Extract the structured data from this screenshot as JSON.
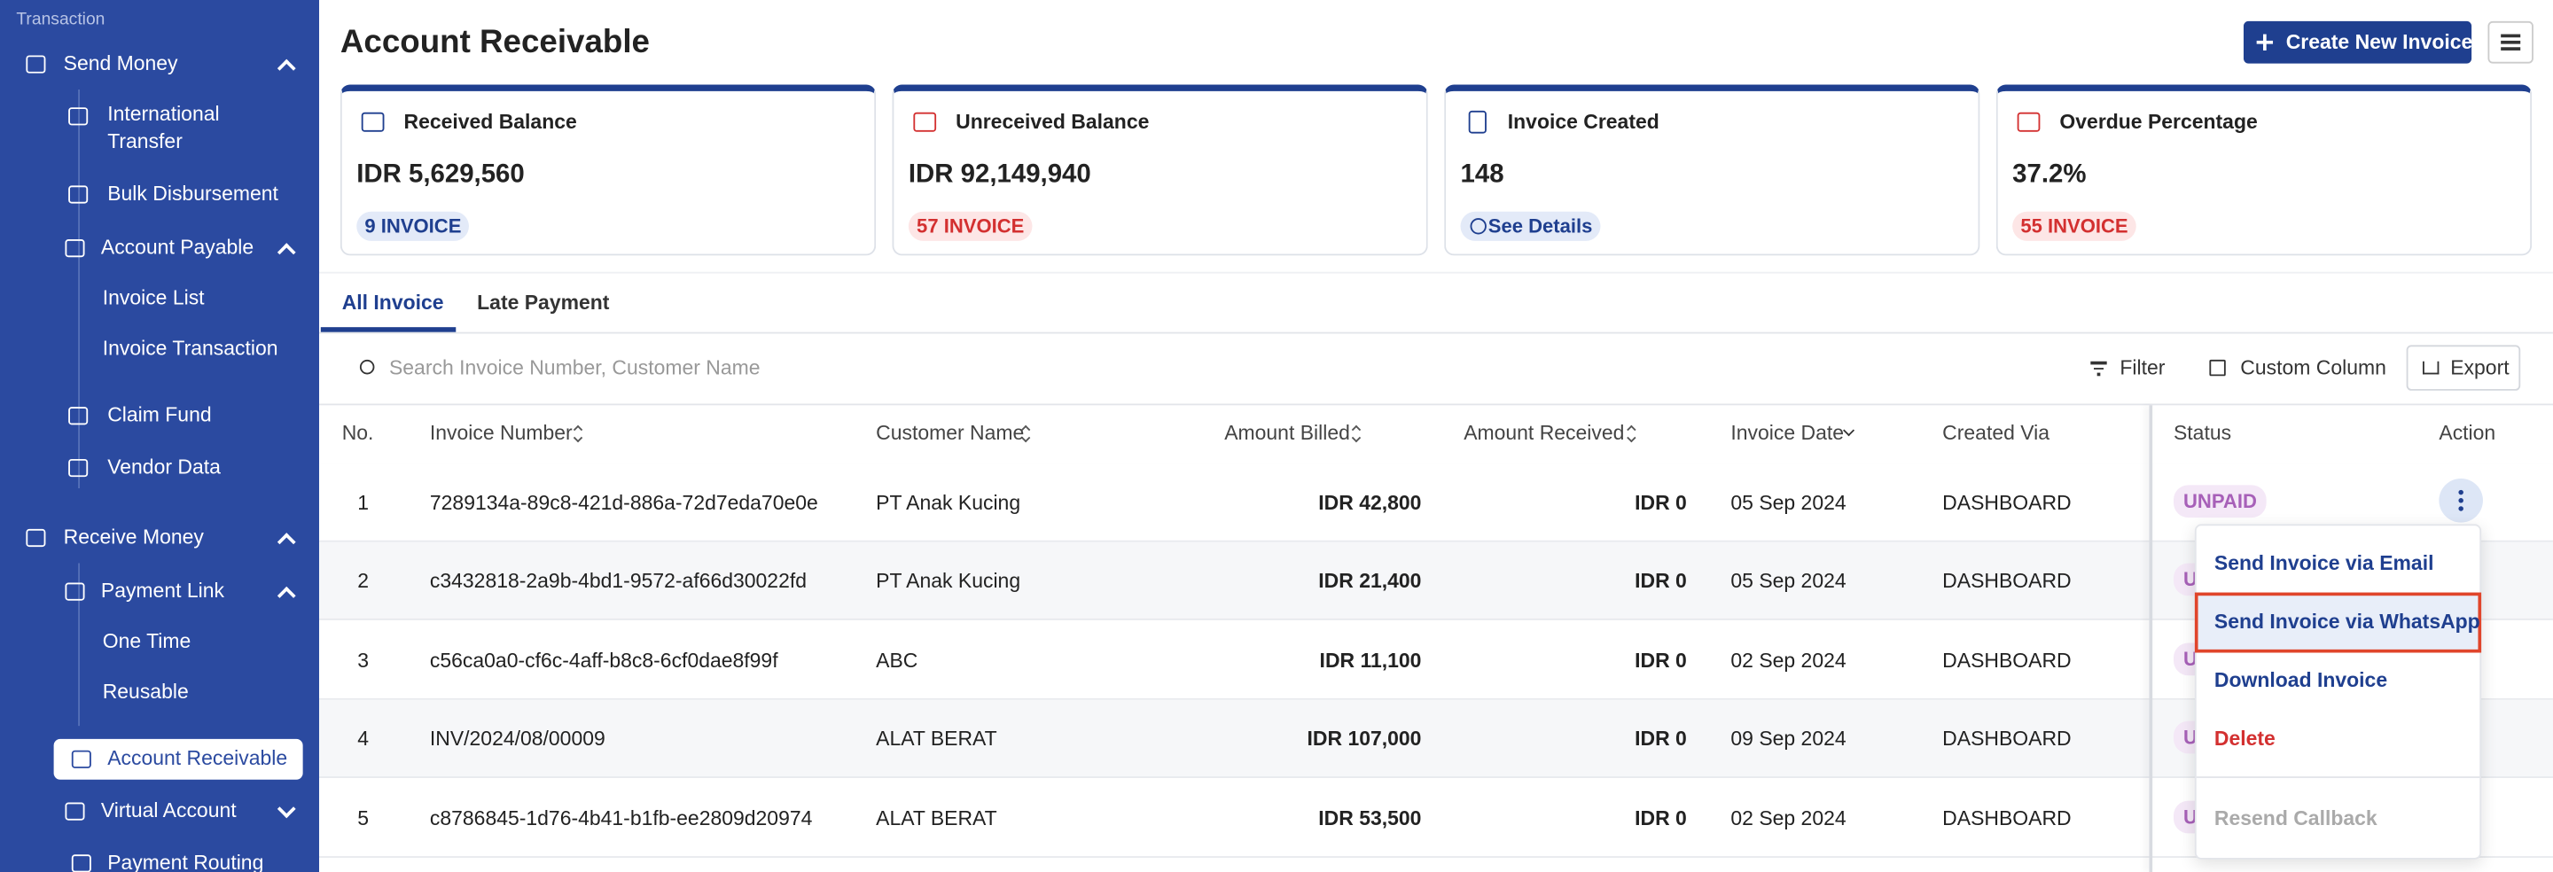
{
  "sidebar": {
    "section": "Transaction",
    "items": [
      "Send Money",
      "International Transfer",
      "Bulk Disbursement",
      "Account Payable",
      "Invoice List",
      "Invoice Transaction",
      "Claim Fund",
      "Vendor Data",
      "Receive Money",
      "Payment Link",
      "One Time",
      "Reusable",
      "Account Receivable",
      "Virtual Account",
      "Payment Routing"
    ]
  },
  "header": {
    "title": "Account Receivable",
    "create_button": "Create New Invoice"
  },
  "cards": [
    {
      "title": "Received Balance",
      "value": "IDR 5,629,560",
      "badge": "9 INVOICE"
    },
    {
      "title": "Unreceived Balance",
      "value": "IDR 92,149,940",
      "badge": "57 INVOICE"
    },
    {
      "title": "Invoice Created",
      "value": "148",
      "badge": "See Details"
    },
    {
      "title": "Overdue Percentage",
      "value": "37.2%",
      "badge": "55 INVOICE"
    }
  ],
  "tabs": [
    "All Invoice",
    "Late Payment"
  ],
  "toolbar": {
    "search_placeholder": "Search Invoice Number, Customer Name",
    "filter": "Filter",
    "custom_column": "Custom Column",
    "export": "Export"
  },
  "table": {
    "columns": [
      "No.",
      "Invoice Number",
      "Customer Name",
      "Amount Billed",
      "Amount Received",
      "Invoice Date",
      "Created Via",
      "Status",
      "Action"
    ],
    "rows": [
      [
        "1",
        "7289134a-89c8-421d-886a-72d7eda70e0e",
        "PT Anak Kucing",
        "IDR 42,800",
        "IDR 0",
        "05 Sep 2024",
        "DASHBOARD",
        "UNPAID"
      ],
      [
        "2",
        "c3432818-2a9b-4bd1-9572-af66d30022fd",
        "PT Anak Kucing",
        "IDR 21,400",
        "IDR 0",
        "05 Sep 2024",
        "DASHBOARD",
        "UNPAID"
      ],
      [
        "3",
        "c56ca0a0-cf6c-4aff-b8c8-6cf0dae8f99f",
        "ABC",
        "IDR 11,100",
        "IDR 0",
        "02 Sep 2024",
        "DASHBOARD",
        "UNPAID"
      ],
      [
        "4",
        "INV/2024/08/00009",
        "ALAT BERAT",
        "IDR 107,000",
        "IDR 0",
        "09 Sep 2024",
        "DASHBOARD",
        "UNPAID"
      ],
      [
        "5",
        "c8786845-1d76-4b41-b1fb-ee2809d20974",
        "ALAT BERAT",
        "IDR 53,500",
        "IDR 0",
        "02 Sep 2024",
        "DASHBOARD",
        "UNPAID"
      ]
    ]
  },
  "action_menu": [
    "Send Invoice via Email",
    "Send Invoice via WhatsApp",
    "Download Invoice",
    "Delete",
    "Resend Callback"
  ]
}
